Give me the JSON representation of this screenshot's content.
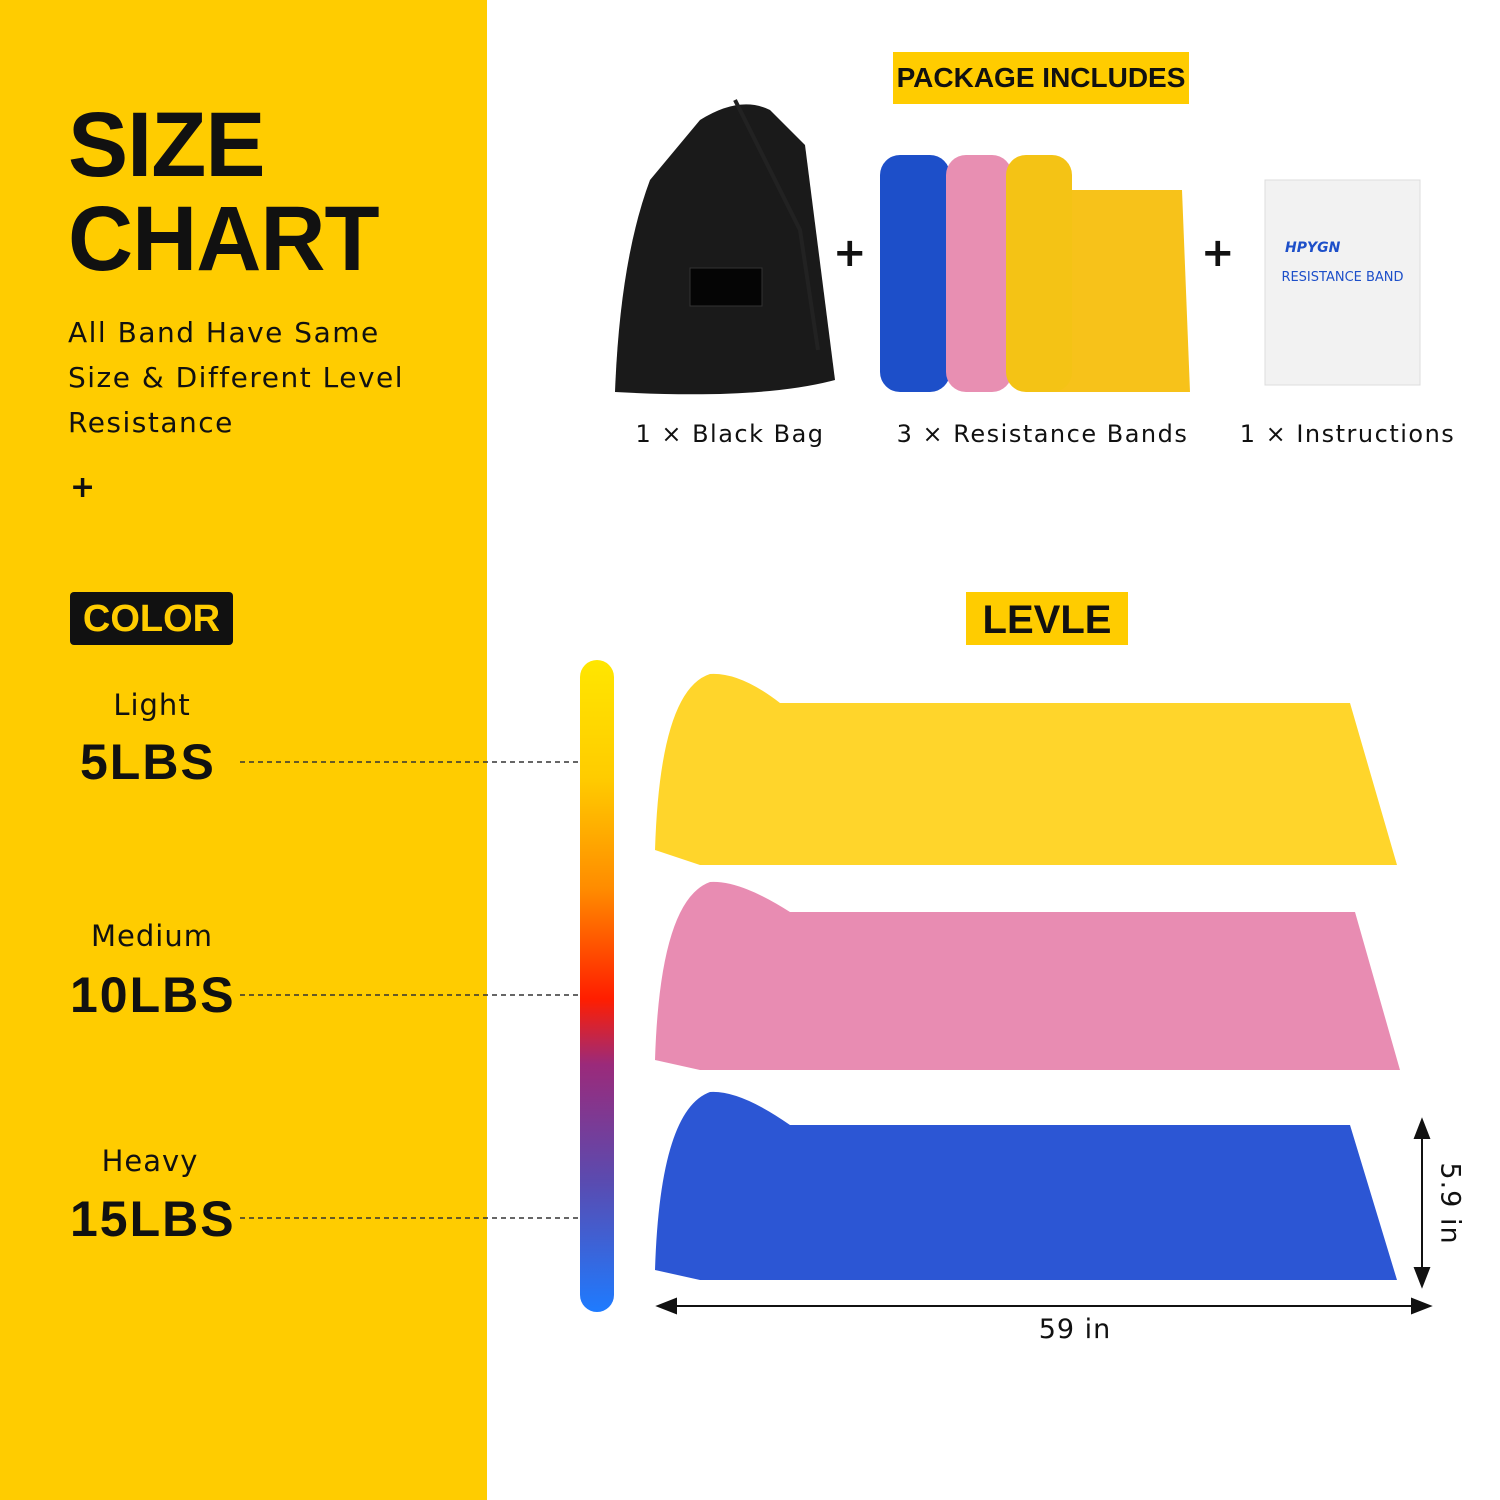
{
  "header": {
    "title_lines": [
      "SIZE",
      "CHART"
    ],
    "subtitle": "All Band Have Same Size & Different Level Resistance",
    "plus": "+"
  },
  "color_badge": "COLOR",
  "levels": [
    {
      "name": "Light",
      "weight": "5LBS"
    },
    {
      "name": "Medium",
      "weight": "10LBS"
    },
    {
      "name": "Heavy",
      "weight": "15LBS"
    }
  ],
  "package": {
    "title": "PACKAGE INCLUDES",
    "separator": "+",
    "items": [
      "1 × Black Bag",
      "3 × Resistance Bands",
      "1 × Instructions"
    ]
  },
  "instructions_card": {
    "brand": "HPYGN",
    "title": "RESISTANCE BAND"
  },
  "level_badge": "LEVLE",
  "dimensions": {
    "length": "59 in",
    "width": "5.9 in"
  }
}
